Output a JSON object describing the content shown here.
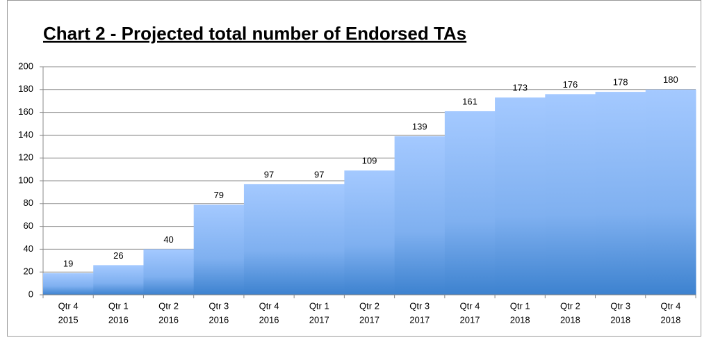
{
  "chart_data": {
    "type": "bar",
    "title": "Chart 2 - Projected total number of Endorsed TAs",
    "categories": [
      [
        "Qtr 4",
        "2015"
      ],
      [
        "Qtr 1",
        "2016"
      ],
      [
        "Qtr 2",
        "2016"
      ],
      [
        "Qtr 3",
        "2016"
      ],
      [
        "Qtr 4",
        "2016"
      ],
      [
        "Qtr 1",
        "2017"
      ],
      [
        "Qtr 2",
        "2017"
      ],
      [
        "Qtr 3",
        "2017"
      ],
      [
        "Qtr 4",
        "2017"
      ],
      [
        "Qtr 1",
        "2018"
      ],
      [
        "Qtr 2",
        "2018"
      ],
      [
        "Qtr 3",
        "2018"
      ],
      [
        "Qtr 4",
        "2018"
      ]
    ],
    "values": [
      19,
      26,
      40,
      79,
      97,
      97,
      109,
      139,
      161,
      173,
      176,
      178,
      180
    ],
    "color": "#8db8f5",
    "ylim": [
      0,
      200
    ],
    "yticks": [
      0,
      20,
      40,
      60,
      80,
      100,
      120,
      140,
      160,
      180,
      200
    ],
    "grid": true
  }
}
